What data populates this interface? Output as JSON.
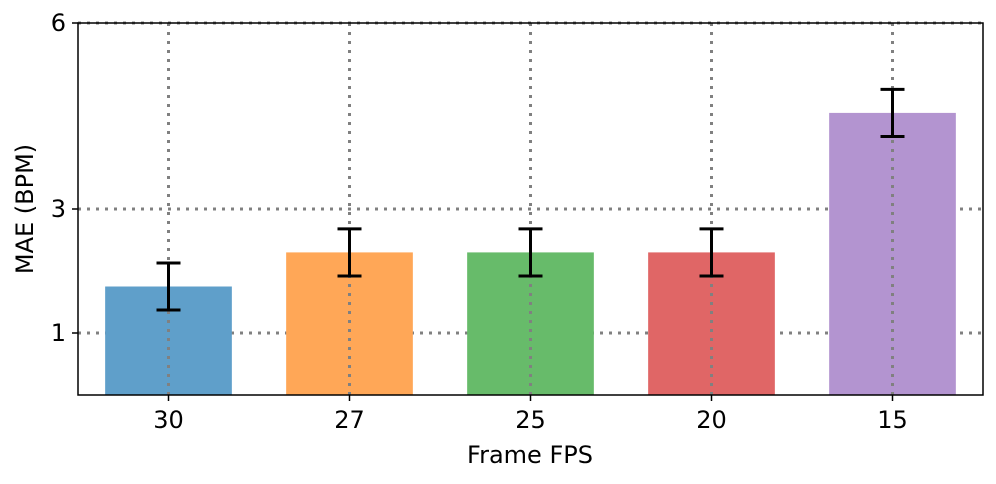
{
  "chart_data": {
    "type": "bar",
    "categories": [
      "30",
      "27",
      "25",
      "20",
      "15"
    ],
    "values": [
      1.75,
      2.3,
      2.3,
      2.3,
      4.55
    ],
    "errors": [
      0.38,
      0.38,
      0.38,
      0.38,
      0.38
    ],
    "colors": [
      "#5f9fca",
      "#ffa757",
      "#67bb6a",
      "#e06666",
      "#b394d0"
    ],
    "xlabel": "Frame FPS",
    "ylabel": "MAE (BPM)",
    "ylim": [
      0,
      6
    ],
    "yticks": [
      1,
      3,
      6
    ],
    "ytick_labels": [
      "1",
      "3",
      "6"
    ],
    "grid": true
  }
}
